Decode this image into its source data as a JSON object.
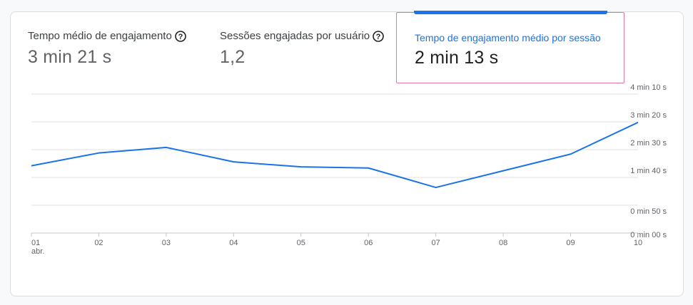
{
  "metrics": [
    {
      "label": "Tempo médio de engajamento",
      "value": "3 min 21 s",
      "help_icon": "help-circle-icon"
    },
    {
      "label": "Sessões engajadas por usuário",
      "value": "1,2",
      "help_icon": "help-circle-icon"
    },
    {
      "label": "Tempo de engajamento médio por sessão",
      "value": "2 min 13 s",
      "selected": true
    }
  ],
  "colors": {
    "line": "#1a73e8",
    "selected_border": "#e8779c",
    "grid": "#e0e0e0"
  },
  "chart_data": {
    "type": "line",
    "x": [
      "01",
      "02",
      "03",
      "04",
      "05",
      "06",
      "07",
      "08",
      "09",
      "10"
    ],
    "x_sublabel": "abr.",
    "series": [
      {
        "values": [
          121,
          144,
          154,
          128,
          119,
          117,
          82,
          112,
          142,
          199
        ]
      }
    ],
    "ylim": [
      0,
      250
    ],
    "y_ticks": [
      {
        "value": 250,
        "label": "4 min 10 s"
      },
      {
        "value": 200,
        "label": "3 min 20 s"
      },
      {
        "value": 150,
        "label": "2 min 30 s"
      },
      {
        "value": 100,
        "label": "1 min 40 s"
      },
      {
        "value": 50,
        "label": "0 min 50 s"
      },
      {
        "value": 0,
        "label": "0 min 00 s"
      }
    ],
    "grid": true
  }
}
